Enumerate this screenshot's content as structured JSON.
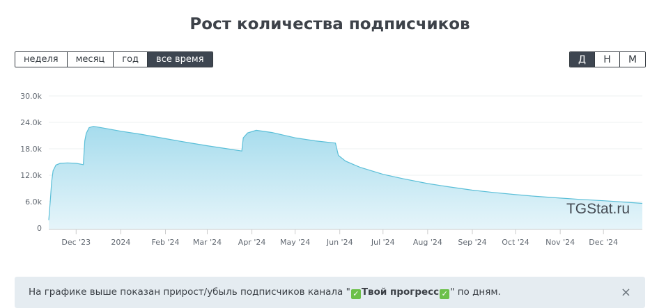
{
  "title": "Рост количества подписчиков",
  "range_buttons": [
    {
      "label": "неделя",
      "active": false
    },
    {
      "label": "месяц",
      "active": false
    },
    {
      "label": "год",
      "active": false
    },
    {
      "label": "все время",
      "active": true
    }
  ],
  "granularity_buttons": [
    {
      "label": "Д",
      "active": true
    },
    {
      "label": "Н",
      "active": false
    },
    {
      "label": "М",
      "active": false
    }
  ],
  "watermark": "TGStat.ru",
  "note": {
    "prefix": "На графике выше показан прирост/убыль подписчиков канала ",
    "quote_open": "\"",
    "check_left": "✓",
    "channel_name": "Твой прогресс",
    "check_right": "✓",
    "quote_close": "\"",
    "suffix": " по дням.",
    "close_symbol": "×"
  },
  "colors": {
    "line": "#5bbfd8",
    "fill_top": "#a6dced",
    "fill_bottom": "#e6f5fa",
    "active_button": "#3e4651"
  },
  "chart_data": {
    "type": "area",
    "y_ticks": [
      "0",
      "6.0k",
      "12.0k",
      "18.0k",
      "24.0k",
      "30.0k"
    ],
    "y_tick_values": [
      0,
      6000,
      12000,
      18000,
      24000,
      30000
    ],
    "ylim": [
      0,
      30000
    ],
    "x_ticks": [
      "Dec '23",
      "2024",
      "Feb '24",
      "Mar '24",
      "Apr '24",
      "May '24",
      "Jun '24",
      "Jul '24",
      "Aug '24",
      "Sep '24",
      "Oct '24",
      "Nov '24",
      "Dec '24"
    ],
    "x_tick_dates": [
      "2023-12-01",
      "2024-01-01",
      "2024-02-01",
      "2024-03-01",
      "2024-04-01",
      "2024-05-01",
      "2024-06-01",
      "2024-07-01",
      "2024-08-01",
      "2024-09-01",
      "2024-10-01",
      "2024-11-01",
      "2024-12-01"
    ],
    "xlim": [
      "2023-11-12",
      "2024-12-28"
    ],
    "grid": true,
    "series": [
      {
        "points": [
          [
            "2023-11-12",
            1800
          ],
          [
            "2023-11-13",
            6000
          ],
          [
            "2023-11-14",
            10500
          ],
          [
            "2023-11-15",
            13000
          ],
          [
            "2023-11-17",
            14300
          ],
          [
            "2023-11-20",
            14700
          ],
          [
            "2023-11-25",
            14800
          ],
          [
            "2023-12-01",
            14700
          ],
          [
            "2023-12-06",
            14400
          ],
          [
            "2023-12-07",
            19800
          ],
          [
            "2023-12-08",
            21500
          ],
          [
            "2023-12-10",
            22800
          ],
          [
            "2023-12-13",
            23100
          ],
          [
            "2023-12-20",
            22700
          ],
          [
            "2024-01-01",
            22000
          ],
          [
            "2024-01-15",
            21300
          ],
          [
            "2024-02-01",
            20300
          ],
          [
            "2024-02-15",
            19500
          ],
          [
            "2024-03-01",
            18700
          ],
          [
            "2024-03-15",
            18000
          ],
          [
            "2024-03-25",
            17500
          ],
          [
            "2024-03-26",
            20500
          ],
          [
            "2024-03-29",
            21600
          ],
          [
            "2024-04-04",
            22200
          ],
          [
            "2024-04-15",
            21700
          ],
          [
            "2024-05-01",
            20500
          ],
          [
            "2024-05-15",
            19800
          ],
          [
            "2024-05-29",
            19300
          ],
          [
            "2024-05-31",
            16500
          ],
          [
            "2024-06-05",
            15200
          ],
          [
            "2024-06-15",
            13800
          ],
          [
            "2024-07-01",
            12200
          ],
          [
            "2024-07-15",
            11200
          ],
          [
            "2024-08-01",
            10100
          ],
          [
            "2024-08-15",
            9400
          ],
          [
            "2024-09-01",
            8600
          ],
          [
            "2024-09-15",
            8100
          ],
          [
            "2024-10-01",
            7600
          ],
          [
            "2024-10-15",
            7200
          ],
          [
            "2024-11-01",
            6800
          ],
          [
            "2024-11-15",
            6500
          ],
          [
            "2024-12-01",
            6200
          ],
          [
            "2024-12-15",
            5900
          ],
          [
            "2024-12-28",
            5600
          ]
        ]
      }
    ]
  }
}
